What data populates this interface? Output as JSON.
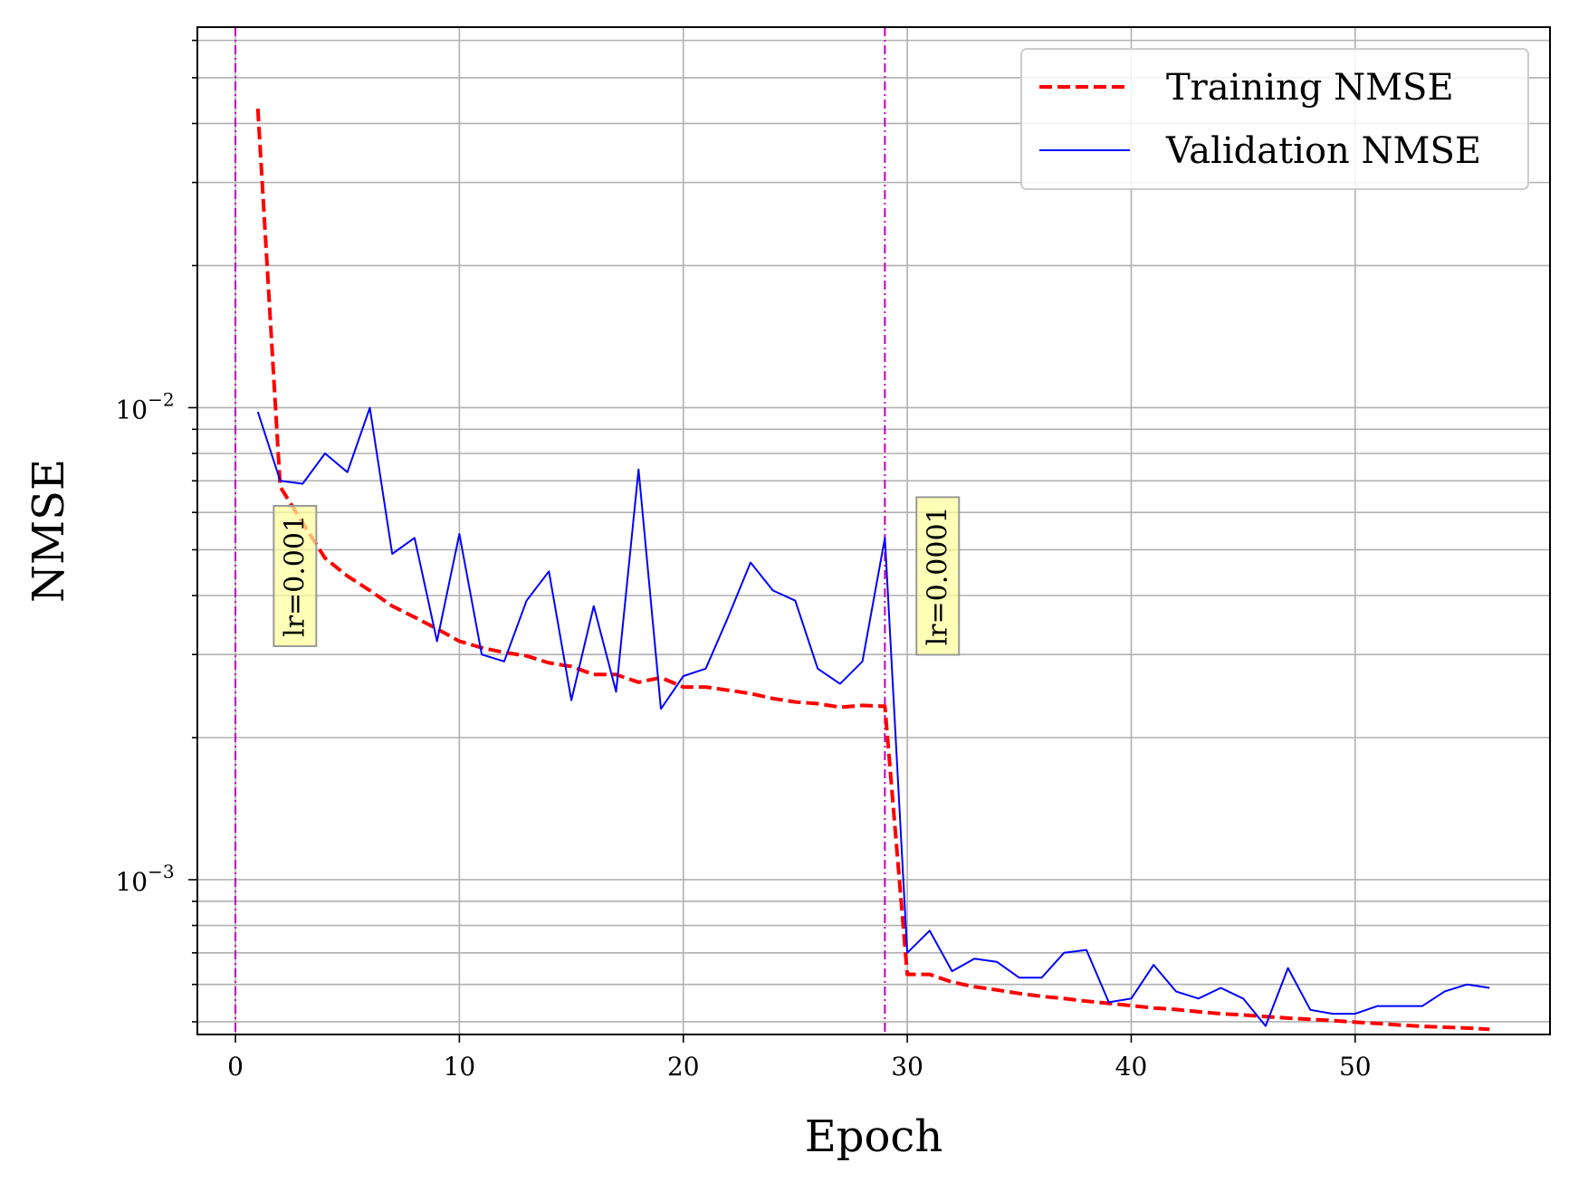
{
  "chart_data": {
    "type": "line",
    "xlabel": "Epoch",
    "ylabel": "NMSE",
    "yscale": "log",
    "xlim": [
      -1.7,
      58.7
    ],
    "ylim": [
      0.00047,
      0.064
    ],
    "grid": true,
    "legend_position": "top-right",
    "x_ticks": [
      0,
      10,
      20,
      30,
      40,
      50
    ],
    "x_tick_labels": [
      "0",
      "10",
      "20",
      "30",
      "40",
      "50"
    ],
    "y_major_ticks": [
      0.001,
      0.01
    ],
    "y_tick_labels": [
      {
        "base": "10",
        "exp": "−3"
      },
      {
        "base": "10",
        "exp": "−2"
      }
    ],
    "series": [
      {
        "name": "Training NMSE",
        "color": "#ff0000",
        "style": "dashed",
        "x": [
          1,
          2,
          3,
          4,
          5,
          6,
          7,
          8,
          9,
          10,
          11,
          12,
          13,
          14,
          15,
          16,
          17,
          18,
          19,
          20,
          21,
          22,
          23,
          24,
          25,
          26,
          27,
          28,
          29,
          30,
          31,
          32,
          33,
          34,
          35,
          36,
          37,
          38,
          39,
          40,
          41,
          42,
          43,
          44,
          45,
          46,
          47,
          48,
          49,
          50,
          51,
          52,
          53,
          54,
          55,
          56
        ],
        "values": [
          0.043,
          0.0068,
          0.0057,
          0.0048,
          0.0044,
          0.0041,
          0.0038,
          0.0036,
          0.0034,
          0.0032,
          0.0031,
          0.00303,
          0.00298,
          0.00288,
          0.00283,
          0.00272,
          0.00272,
          0.00262,
          0.00268,
          0.00256,
          0.00256,
          0.00252,
          0.00248,
          0.00242,
          0.00238,
          0.00236,
          0.00232,
          0.00234,
          0.00233,
          0.00063,
          0.00063,
          0.000607,
          0.000593,
          0.000584,
          0.000574,
          0.000566,
          0.00056,
          0.000553,
          0.000547,
          0.000541,
          0.000535,
          0.000531,
          0.000525,
          0.00052,
          0.000517,
          0.000513,
          0.000509,
          0.000506,
          0.000503,
          0.000499,
          0.000496,
          0.000492,
          0.000489,
          0.000487,
          0.000485,
          0.000482
        ]
      },
      {
        "name": "Validation NMSE",
        "color": "#0000ff",
        "style": "solid",
        "x": [
          1,
          2,
          3,
          4,
          5,
          6,
          7,
          8,
          9,
          10,
          11,
          12,
          13,
          14,
          15,
          16,
          17,
          18,
          19,
          20,
          21,
          22,
          23,
          24,
          25,
          26,
          27,
          28,
          29,
          30,
          31,
          32,
          33,
          34,
          35,
          36,
          37,
          38,
          39,
          40,
          41,
          42,
          43,
          44,
          45,
          46,
          47,
          48,
          49,
          50,
          51,
          52,
          53,
          54,
          55,
          56
        ],
        "values": [
          0.0098,
          0.007,
          0.0069,
          0.008,
          0.0073,
          0.01,
          0.0049,
          0.0053,
          0.0032,
          0.0054,
          0.003,
          0.0029,
          0.0039,
          0.0045,
          0.0024,
          0.0038,
          0.0025,
          0.0074,
          0.0023,
          0.0027,
          0.0028,
          0.0036,
          0.0047,
          0.0041,
          0.0039,
          0.0028,
          0.0026,
          0.0029,
          0.0053,
          0.0007,
          0.00078,
          0.00064,
          0.00068,
          0.00067,
          0.00062,
          0.00062,
          0.0007,
          0.00071,
          0.00055,
          0.00056,
          0.00066,
          0.00058,
          0.00056,
          0.00059,
          0.00056,
          0.00049,
          0.00065,
          0.00053,
          0.00052,
          0.00052,
          0.00054,
          0.00054,
          0.00054,
          0.00058,
          0.0006,
          0.00059
        ]
      }
    ],
    "vlines": [
      {
        "x": 0,
        "color": "#bf00bf",
        "style": "dashdot"
      },
      {
        "x": 29,
        "color": "#bf00bf",
        "style": "dashdot"
      }
    ],
    "annotations": [
      {
        "text": "lr=0.001",
        "x": 2.6,
        "y": 0.0044,
        "rotation": -90
      },
      {
        "text": "lr=0.0001",
        "x": 31.3,
        "y": 0.0044,
        "rotation": -90
      }
    ]
  }
}
